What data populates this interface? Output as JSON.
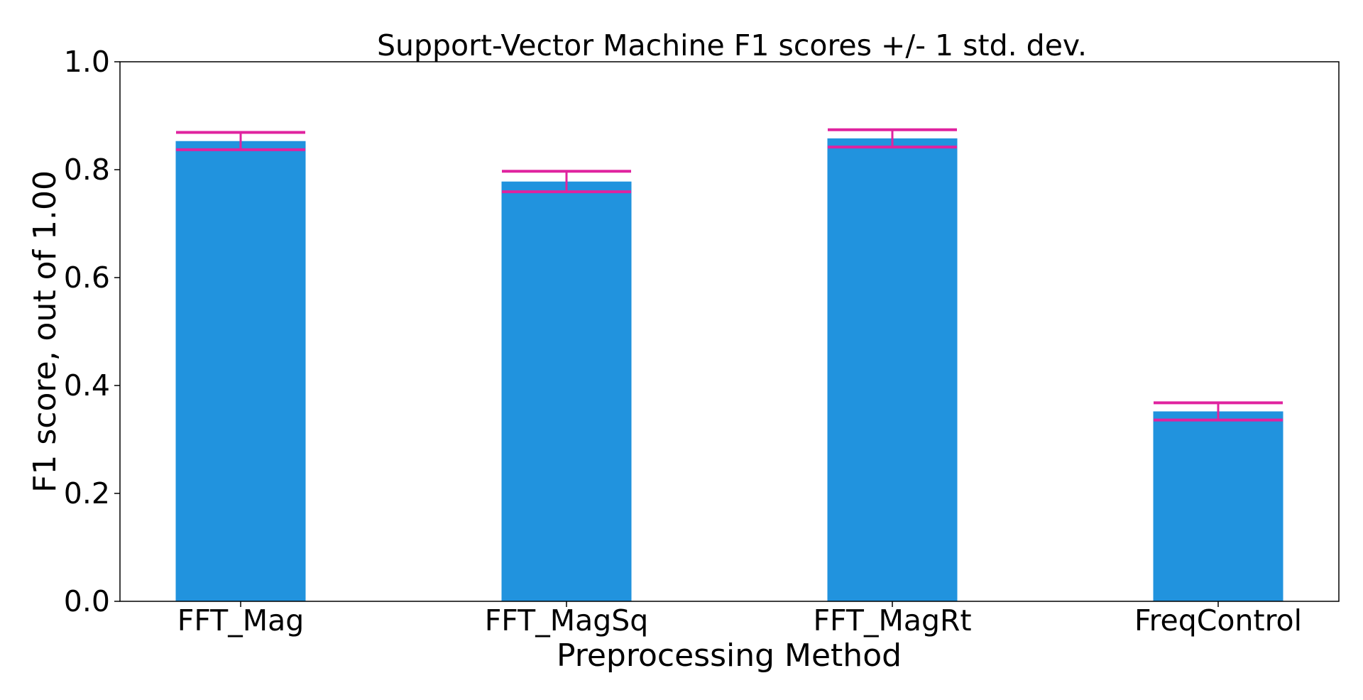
{
  "chart_data": {
    "type": "bar",
    "title": "Support-Vector Machine F1 scores +/- 1 std. dev.",
    "xlabel": "Preprocessing Method",
    "ylabel": "F1 score, out of 1.00",
    "categories": [
      "FFT_Mag",
      "FFT_MagSq",
      "FFT_MagRt",
      "FreqControl"
    ],
    "values": [
      0.853,
      0.778,
      0.858,
      0.352
    ],
    "error": [
      0.016,
      0.019,
      0.016,
      0.016
    ],
    "ylim": [
      0,
      1.0
    ],
    "yticks": [
      0.0,
      0.2,
      0.4,
      0.6,
      0.8,
      1.0
    ],
    "ytick_labels": [
      "0.0",
      "0.2",
      "0.4",
      "0.6",
      "0.8",
      "1.0"
    ],
    "grid": false,
    "legend": "none",
    "colors": {
      "bar": "#2193de",
      "error": "#e0239f",
      "axes": "#000000"
    }
  }
}
